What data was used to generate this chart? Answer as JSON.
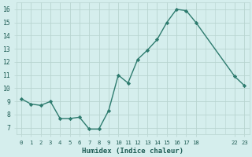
{
  "x": [
    0,
    1,
    2,
    3,
    4,
    5,
    6,
    7,
    8,
    9,
    10,
    11,
    12,
    13,
    14,
    15,
    16,
    17,
    18,
    22,
    23
  ],
  "y": [
    9.2,
    8.8,
    8.7,
    9.0,
    7.7,
    7.7,
    7.8,
    6.9,
    6.9,
    8.3,
    11.0,
    10.4,
    12.2,
    12.9,
    13.7,
    15.0,
    16.0,
    15.9,
    15.0,
    10.9,
    10.2
  ],
  "line_color": "#2d7b6e",
  "marker_color": "#2d7b6e",
  "bg_color": "#d5eeed",
  "grid_color": "#b8d4d0",
  "xlabel": "Humidex (Indice chaleur)",
  "xlim": [
    -0.5,
    23.5
  ],
  "ylim": [
    6.5,
    16.5
  ],
  "xticks": [
    0,
    1,
    2,
    3,
    4,
    5,
    6,
    7,
    8,
    9,
    10,
    11,
    12,
    13,
    14,
    15,
    16,
    17,
    18,
    22,
    23
  ],
  "xtick_labels": [
    "0",
    "1",
    "2",
    "3",
    "4",
    "5",
    "6",
    "7",
    "8",
    "9",
    "10",
    "11",
    "12",
    "13",
    "14",
    "15",
    "16",
    "17",
    "18",
    "22",
    "23"
  ],
  "yticks": [
    7,
    8,
    9,
    10,
    11,
    12,
    13,
    14,
    15,
    16
  ],
  "font_color": "#1e5c54",
  "font_size_x": 5.2,
  "font_size_y": 5.8,
  "font_size_label": 6.5,
  "linewidth": 1.0,
  "markersize": 2.2
}
